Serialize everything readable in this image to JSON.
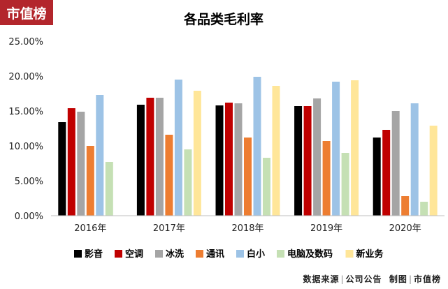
{
  "brand": {
    "logo_text": "市值榜",
    "color": "#b3262c"
  },
  "chart_data": {
    "type": "bar",
    "title": "各品类毛利率",
    "categories": [
      "2016年",
      "2017年",
      "2018年",
      "2019年",
      "2020年"
    ],
    "ylim": [
      0,
      25
    ],
    "yticks": [
      "0.00%",
      "5.00%",
      "10.00%",
      "15.00%",
      "20.00%",
      "25.00%"
    ],
    "unit": "%",
    "grid": false,
    "legend_position": "bottom",
    "series": [
      {
        "name": "影音",
        "color": "#000000",
        "values": [
          13.4,
          15.9,
          15.8,
          15.7,
          11.2
        ]
      },
      {
        "name": "空调",
        "color": "#c00000",
        "values": [
          15.4,
          16.9,
          16.2,
          15.7,
          12.3
        ]
      },
      {
        "name": "冰洗",
        "color": "#a5a5a5",
        "values": [
          14.9,
          16.9,
          16.1,
          16.8,
          15.0
        ]
      },
      {
        "name": "通讯",
        "color": "#ed7d31",
        "values": [
          10.0,
          11.6,
          11.2,
          10.7,
          2.8
        ]
      },
      {
        "name": "白小",
        "color": "#9dc3e6",
        "values": [
          17.3,
          19.5,
          19.9,
          19.2,
          16.1
        ]
      },
      {
        "name": "电脑及数码",
        "color": "#c5e0b4",
        "values": [
          7.7,
          9.5,
          8.3,
          9.0,
          2.0
        ]
      },
      {
        "name": "新业务",
        "color": "#ffe699",
        "values": [
          null,
          17.9,
          18.6,
          19.4,
          12.9
        ]
      }
    ]
  },
  "footer": {
    "source": "数据来源",
    "company": "公司公告",
    "made_by": "制图",
    "maker": "市值榜"
  }
}
